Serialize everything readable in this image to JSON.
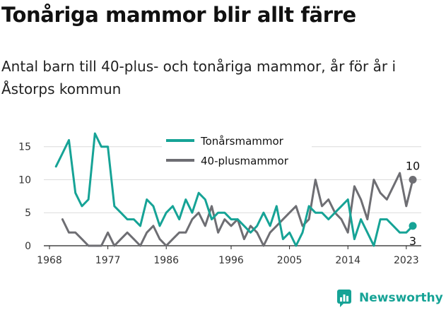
{
  "title": "Tonåriga mammor blir allt färre",
  "subtitle": "Antal barn till 40-plus- och tonåriga mammor, år för år i Åstorps kommun",
  "brand": {
    "name": "Newsworthy",
    "icon": "newsworthy-logo-icon",
    "color": "#16a396"
  },
  "chart_data": {
    "type": "line",
    "x": [
      1968,
      1969,
      1970,
      1971,
      1972,
      1973,
      1974,
      1975,
      1976,
      1977,
      1978,
      1979,
      1980,
      1981,
      1982,
      1983,
      1984,
      1985,
      1986,
      1987,
      1988,
      1989,
      1990,
      1991,
      1992,
      1993,
      1994,
      1995,
      1996,
      1997,
      1998,
      1999,
      2000,
      2001,
      2002,
      2003,
      2004,
      2005,
      2006,
      2007,
      2008,
      2009,
      2010,
      2011,
      2012,
      2013,
      2014,
      2015,
      2016,
      2017,
      2018,
      2019,
      2020,
      2021,
      2022,
      2023,
      2024
    ],
    "series": [
      {
        "name": "Tonårsmammor",
        "color": "#16a396",
        "values": [
          null,
          12,
          14,
          16,
          8,
          6,
          7,
          17,
          15,
          15,
          6,
          5,
          4,
          4,
          3,
          7,
          6,
          3,
          5,
          6,
          4,
          7,
          5,
          8,
          7,
          4,
          5,
          5,
          4,
          4,
          3,
          2,
          3,
          5,
          3,
          6,
          1,
          2,
          0,
          2,
          6,
          5,
          5,
          4,
          5,
          6,
          7,
          1,
          4,
          2,
          0,
          4,
          4,
          3,
          2,
          2,
          3
        ],
        "end_label": "3"
      },
      {
        "name": "40-plusmammor",
        "color": "#6e6e73",
        "values": [
          null,
          null,
          4,
          2,
          2,
          1,
          0,
          0,
          0,
          2,
          0,
          1,
          2,
          1,
          0,
          2,
          3,
          1,
          0,
          1,
          2,
          2,
          4,
          5,
          3,
          6,
          2,
          4,
          3,
          4,
          1,
          3,
          2,
          0,
          2,
          3,
          4,
          5,
          6,
          3,
          4,
          10,
          6,
          7,
          5,
          4,
          2,
          9,
          7,
          4,
          10,
          8,
          7,
          9,
          11,
          6,
          10
        ],
        "end_label": "10"
      }
    ],
    "xticks": [
      1968,
      1977,
      1986,
      1996,
      2005,
      2014,
      2023
    ],
    "yticks": [
      0,
      5,
      10,
      15
    ],
    "xlim": [
      1968,
      2024
    ],
    "ylim": [
      0,
      17
    ],
    "grid": "horizontal",
    "legend_position": "top-center",
    "xlabel": "",
    "ylabel": ""
  }
}
